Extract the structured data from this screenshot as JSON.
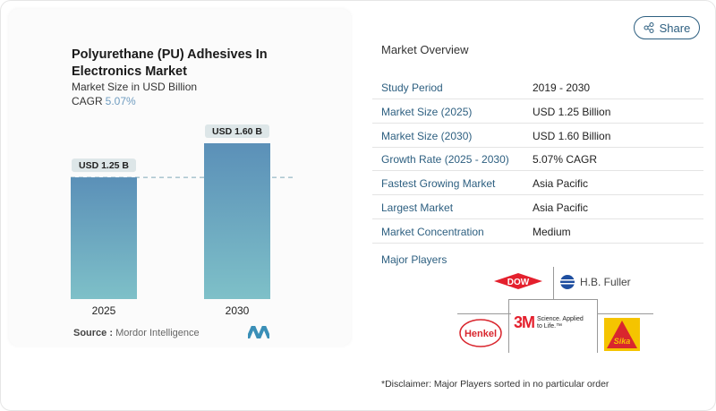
{
  "share_label": "Share",
  "chart_card": {
    "title": "Polyurethane (PU) Adhesives In Electronics Market",
    "subtitle": "Market Size in USD Billion",
    "cagr_label": "CAGR",
    "cagr_value": "5.07%",
    "source_label": "Source :",
    "source_value": "Mordor Intelligence"
  },
  "chart_data": {
    "type": "bar",
    "categories": [
      "2025",
      "2030"
    ],
    "values": [
      1.25,
      1.6
    ],
    "data_labels": [
      "USD 1.25 B",
      "USD 1.60 B"
    ],
    "title": "Polyurethane (PU) Adhesives In Electronics Market",
    "ylabel": "Market Size in USD Billion",
    "ylim": [
      0,
      1.6
    ],
    "reference_line": 1.25
  },
  "overview": {
    "title": "Market Overview",
    "rows": [
      {
        "label": "Study Period",
        "value": "2019 - 2030"
      },
      {
        "label": "Market Size (2025)",
        "value": "USD 1.25 Billion"
      },
      {
        "label": "Market Size (2030)",
        "value": "USD 1.60 Billion"
      },
      {
        "label": "Growth Rate (2025 - 2030)",
        "value": "5.07% CAGR"
      },
      {
        "label": "Fastest Growing Market",
        "value": "Asia Pacific"
      },
      {
        "label": "Largest Market",
        "value": "Asia Pacific"
      },
      {
        "label": "Market Concentration",
        "value": "Medium"
      }
    ],
    "major_players_label": "Major Players",
    "players": [
      "DOW",
      "H.B. Fuller",
      "Henkel",
      "3M",
      "Sika"
    ],
    "tagline_3m": "Science. Applied to Life.™"
  },
  "disclaimer": "*Disclaimer: Major Players sorted in no particular order"
}
